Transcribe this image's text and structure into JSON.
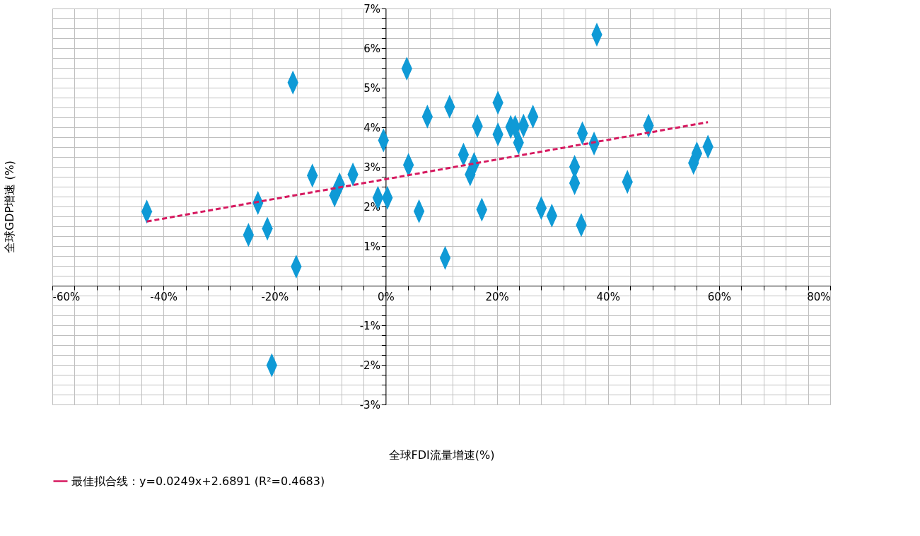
{
  "chart_data": {
    "type": "scatter",
    "xlabel": "全球FDI流量增速(%)",
    "ylabel": "全球GDP增速 (%)",
    "xlim": [
      -60,
      80
    ],
    "ylim": [
      -3,
      7
    ],
    "xticks": [
      {
        "value": -60,
        "label": "-60%"
      },
      {
        "value": -56,
        "label": null
      },
      {
        "value": -52,
        "label": null
      },
      {
        "value": -48,
        "label": null
      },
      {
        "value": -44,
        "label": null
      },
      {
        "value": -40,
        "label": "-40%"
      },
      {
        "value": -36,
        "label": null
      },
      {
        "value": -32,
        "label": null
      },
      {
        "value": -28,
        "label": null
      },
      {
        "value": -24,
        "label": null
      },
      {
        "value": -20,
        "label": "-20%"
      },
      {
        "value": -16,
        "label": null
      },
      {
        "value": -12,
        "label": null
      },
      {
        "value": -8,
        "label": null
      },
      {
        "value": -4,
        "label": null
      },
      {
        "value": 0,
        "label": "0%"
      },
      {
        "value": 4,
        "label": null
      },
      {
        "value": 8,
        "label": null
      },
      {
        "value": 12,
        "label": null
      },
      {
        "value": 16,
        "label": null
      },
      {
        "value": 20,
        "label": "20%"
      },
      {
        "value": 24,
        "label": null
      },
      {
        "value": 28,
        "label": null
      },
      {
        "value": 32,
        "label": null
      },
      {
        "value": 36,
        "label": null
      },
      {
        "value": 40,
        "label": "40%"
      },
      {
        "value": 44,
        "label": null
      },
      {
        "value": 48,
        "label": null
      },
      {
        "value": 52,
        "label": null
      },
      {
        "value": 56,
        "label": null
      },
      {
        "value": 60,
        "label": "60%"
      },
      {
        "value": 64,
        "label": null
      },
      {
        "value": 68,
        "label": null
      },
      {
        "value": 72,
        "label": null
      },
      {
        "value": 76,
        "label": null
      },
      {
        "value": 80,
        "label": "80%"
      }
    ],
    "yticks": [
      {
        "value": -3,
        "label": "-3%"
      },
      {
        "value": -2.75,
        "label": null
      },
      {
        "value": -2.5,
        "label": null
      },
      {
        "value": -2.25,
        "label": null
      },
      {
        "value": -2,
        "label": "-2%"
      },
      {
        "value": -1.75,
        "label": null
      },
      {
        "value": -1.5,
        "label": null
      },
      {
        "value": -1.25,
        "label": null
      },
      {
        "value": -1,
        "label": "-1%"
      },
      {
        "value": -0.75,
        "label": null
      },
      {
        "value": -0.5,
        "label": null
      },
      {
        "value": -0.25,
        "label": null
      },
      {
        "value": 0,
        "label": null
      },
      {
        "value": 0.25,
        "label": null
      },
      {
        "value": 0.5,
        "label": null
      },
      {
        "value": 0.75,
        "label": null
      },
      {
        "value": 1,
        "label": "1%"
      },
      {
        "value": 1.25,
        "label": null
      },
      {
        "value": 1.5,
        "label": null
      },
      {
        "value": 1.75,
        "label": null
      },
      {
        "value": 2,
        "label": "2%"
      },
      {
        "value": 2.25,
        "label": null
      },
      {
        "value": 2.5,
        "label": null
      },
      {
        "value": 2.75,
        "label": null
      },
      {
        "value": 3,
        "label": "3%"
      },
      {
        "value": 3.25,
        "label": null
      },
      {
        "value": 3.5,
        "label": null
      },
      {
        "value": 3.75,
        "label": null
      },
      {
        "value": 4,
        "label": "4%"
      },
      {
        "value": 4.25,
        "label": null
      },
      {
        "value": 4.5,
        "label": null
      },
      {
        "value": 4.75,
        "label": null
      },
      {
        "value": 5,
        "label": "5%"
      },
      {
        "value": 5.25,
        "label": null
      },
      {
        "value": 5.5,
        "label": null
      },
      {
        "value": 5.75,
        "label": null
      },
      {
        "value": 6,
        "label": "6%"
      },
      {
        "value": 6.25,
        "label": null
      },
      {
        "value": 6.5,
        "label": null
      },
      {
        "value": 6.75,
        "label": null
      },
      {
        "value": 7,
        "label": "7%"
      }
    ],
    "grid": true,
    "legend": "bottom",
    "series": [
      {
        "marker": "diamond",
        "color": "#0f9ad6",
        "x": [
          -43.0,
          -24.7,
          -23.0,
          -21.3,
          -20.5,
          -16.7,
          -16.1,
          -13.2,
          -9.2,
          -8.3,
          -5.9,
          -1.4,
          -0.4,
          0.3,
          3.8,
          4.1,
          6.0,
          7.5,
          10.7,
          11.5,
          14.0,
          15.2,
          15.9,
          16.5,
          17.3,
          20.2,
          20.2,
          22.5,
          23.3,
          23.9,
          24.8,
          26.5,
          28.0,
          29.9,
          34.0,
          34.0,
          35.2,
          35.4,
          37.5,
          38.0,
          43.5,
          47.3,
          55.4,
          56.0,
          58.0
        ],
        "values": [
          1.87,
          1.28,
          2.09,
          1.44,
          -2.01,
          5.13,
          0.48,
          2.78,
          2.28,
          2.56,
          2.81,
          2.22,
          3.67,
          2.22,
          5.48,
          3.05,
          1.88,
          4.27,
          0.7,
          4.52,
          3.31,
          2.81,
          3.07,
          4.03,
          1.92,
          4.62,
          3.82,
          4.01,
          4.01,
          3.61,
          4.04,
          4.27,
          1.96,
          1.77,
          3.0,
          2.59,
          1.53,
          3.85,
          3.59,
          6.34,
          2.62,
          4.04,
          3.1,
          3.34,
          3.51
        ]
      },
      {
        "type": "line",
        "line_style": "dashed",
        "name": "最佳拟合线：y=0.0249x+2.6891 (R²=0.4683)",
        "color": "#d6195f",
        "x": [
          -43,
          58
        ],
        "values": [
          1.62,
          4.13
        ]
      }
    ]
  }
}
